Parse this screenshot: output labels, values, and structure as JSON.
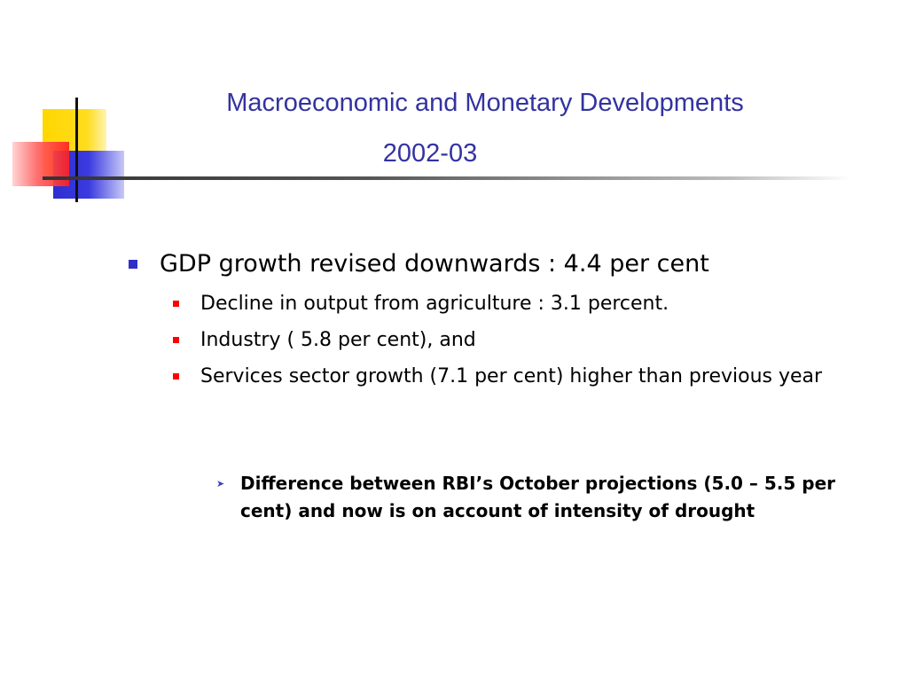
{
  "slide": {
    "title_line1": "Macroeconomic and Monetary Developments",
    "title_line2": "2002-03",
    "bullets": [
      {
        "level": 1,
        "marker": "square",
        "marker_color": "#3030c8",
        "text": "GDP growth revised downwards   :  4.4 per cent"
      },
      {
        "level": 2,
        "marker": "square",
        "marker_color": "#ff0000",
        "text": "Decline in output from agriculture :  3.1 percent."
      },
      {
        "level": 2,
        "marker": "square",
        "marker_color": "#ff0000",
        "text": "Industry ( 5.8 per cent), and"
      },
      {
        "level": 2,
        "marker": "square",
        "marker_color": "#ff0000",
        "text": "Services sector growth (7.1 per cent) higher than previous year"
      },
      {
        "level": 3,
        "marker": "arrow",
        "marker_color": "#4040c0",
        "text": "Difference between RBI’s October projections (5.0 – 5.5 per cent) and now is on account of intensity of drought"
      }
    ]
  },
  "theme": {
    "title_color": "#3333a0",
    "text_color": "#000000",
    "logo_colors": [
      "#ffd700",
      "#2e2ed0",
      "#ff2020"
    ]
  }
}
